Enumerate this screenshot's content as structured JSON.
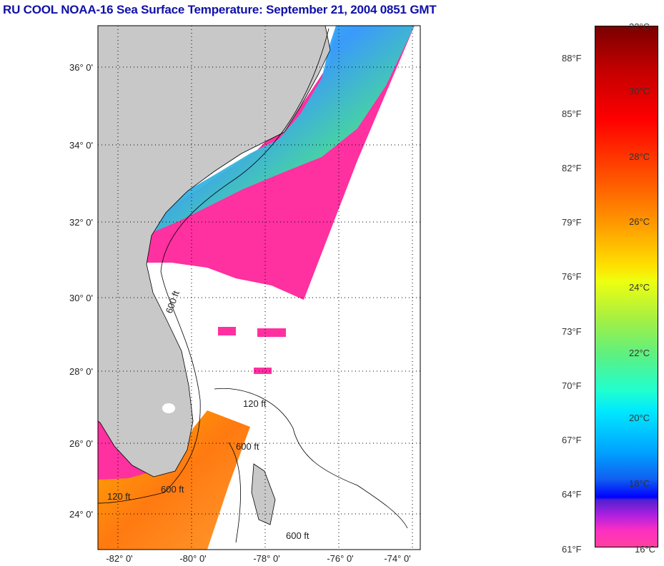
{
  "title": "RU COOL  NOAA-16  Sea Surface Temperature:  September 21, 2004 0851 GMT",
  "map": {
    "lat_labels": [
      "36° 0'",
      "34° 0'",
      "32° 0'",
      "30° 0'",
      "28° 0'",
      "26° 0'",
      "24° 0'"
    ],
    "lon_labels": [
      "-82° 0'",
      "-80° 0'",
      "-78° 0'",
      "-76° 0'",
      "-74° 0'"
    ],
    "contour_labels": [
      "600 ft",
      "120 ft",
      "600 ft",
      "600 ft",
      "600 ft",
      "120 ft"
    ],
    "colors": {
      "land": "#c8c8c8",
      "cold": "#ff30a0",
      "coastal": "#20e0f0",
      "warm": "#ff9a20"
    }
  },
  "colorbar": {
    "celsius": [
      "32°C",
      "30°C",
      "28°C",
      "26°C",
      "24°C",
      "22°C",
      "20°C",
      "18°C",
      "16°C"
    ],
    "fahrenheit": [
      "88°F",
      "85°F",
      "82°F",
      "79°F",
      "76°F",
      "73°F",
      "70°F",
      "67°F",
      "64°F",
      "61°F"
    ]
  }
}
